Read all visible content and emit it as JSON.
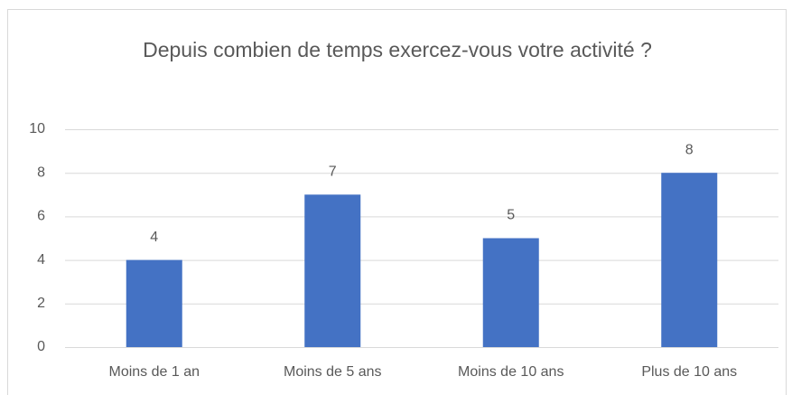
{
  "chart_data": {
    "type": "bar",
    "title": "Depuis combien de temps exercez-vous votre activité ?",
    "categories": [
      "Moins de 1 an",
      "Moins de 5 ans",
      "Moins de 10 ans",
      "Plus de 10 ans"
    ],
    "values": [
      4,
      7,
      5,
      8
    ],
    "color": "#4472c4",
    "ylim": [
      0,
      10
    ],
    "yticks": [
      0,
      2,
      4,
      6,
      8,
      10
    ],
    "grid": true
  }
}
